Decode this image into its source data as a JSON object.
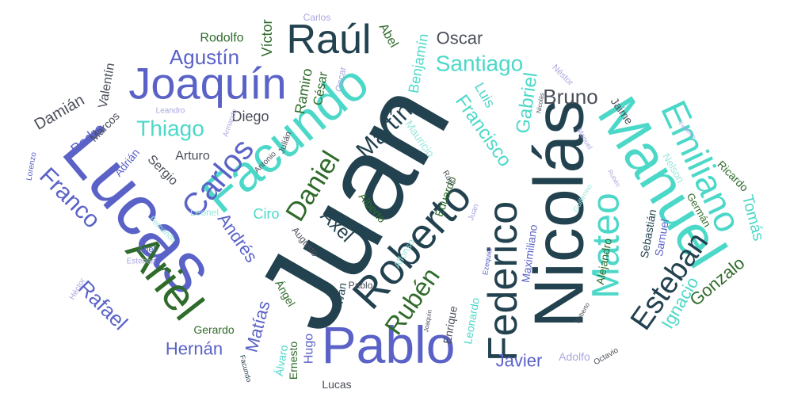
{
  "colors": {
    "navy": "#23424f",
    "blue": "#5a62c7",
    "teal": "#4cd8c8",
    "green": "#2f6b2a",
    "lavender": "#a9a6e0",
    "mint": "#9ce6dc",
    "gray": "#4a4f5a"
  },
  "words": [
    {
      "text": "Juan",
      "color": "navy"
    },
    {
      "text": "Lucas",
      "color": "blue"
    },
    {
      "text": "Nicolás",
      "color": "navy"
    },
    {
      "text": "Manuel",
      "color": "teal"
    },
    {
      "text": "Facundo",
      "color": "teal"
    },
    {
      "text": "Pablo",
      "color": "blue"
    },
    {
      "text": "Joaquín",
      "color": "blue"
    },
    {
      "text": "Raúl",
      "color": "navy"
    },
    {
      "text": "Ariel",
      "color": "green"
    },
    {
      "text": "Federico",
      "color": "navy"
    },
    {
      "text": "Roberto",
      "color": "navy"
    },
    {
      "text": "Emiliano",
      "color": "teal"
    },
    {
      "text": "Mateo",
      "color": "teal"
    },
    {
      "text": "Esteban",
      "color": "navy"
    },
    {
      "text": "Carlos",
      "color": "blue"
    },
    {
      "text": "Daniel",
      "color": "green"
    },
    {
      "text": "Martín",
      "color": "navy"
    },
    {
      "text": "Santiago",
      "color": "teal"
    },
    {
      "text": "Agustín",
      "color": "blue"
    },
    {
      "text": "Thiago",
      "color": "teal"
    },
    {
      "text": "Franco",
      "color": "blue"
    },
    {
      "text": "Rafael",
      "color": "blue"
    },
    {
      "text": "Rubén",
      "color": "green"
    },
    {
      "text": "Bruno",
      "color": "gray"
    },
    {
      "text": "Oscar",
      "color": "gray"
    },
    {
      "text": "Francisco",
      "color": "teal"
    },
    {
      "text": "Gabriel",
      "color": "teal"
    },
    {
      "text": "Axel",
      "color": "navy"
    },
    {
      "text": "Andrés",
      "color": "blue"
    },
    {
      "text": "Matías",
      "color": "blue"
    },
    {
      "text": "Hernán",
      "color": "blue"
    },
    {
      "text": "Ignacio",
      "color": "teal"
    },
    {
      "text": "Gonzalo",
      "color": "green"
    },
    {
      "text": "Tomás",
      "color": "teal"
    },
    {
      "text": "Javier",
      "color": "blue"
    },
    {
      "text": "Damián",
      "color": "gray"
    },
    {
      "text": "Pedro",
      "color": "blue"
    },
    {
      "text": "Diego",
      "color": "gray"
    },
    {
      "text": "Arturo",
      "color": "gray"
    },
    {
      "text": "Sergio",
      "color": "gray"
    },
    {
      "text": "Víctor",
      "color": "green"
    },
    {
      "text": "Rodolfo",
      "color": "green"
    },
    {
      "text": "Benjamín",
      "color": "teal"
    },
    {
      "text": "Abel",
      "color": "green"
    },
    {
      "text": "Ramiro",
      "color": "green"
    },
    {
      "text": "César",
      "color": "green"
    },
    {
      "text": "Luis",
      "color": "teal"
    },
    {
      "text": "Valentín",
      "color": "gray"
    },
    {
      "text": "Marcos",
      "color": "gray"
    },
    {
      "text": "Adrián",
      "color": "blue"
    },
    {
      "text": "Ciro",
      "color": "teal"
    },
    {
      "text": "Leonel",
      "color": "mint"
    },
    {
      "text": "Alberto",
      "color": "green"
    },
    {
      "text": "Eduardo",
      "color": "green"
    },
    {
      "text": "Mauricio",
      "color": "mint"
    },
    {
      "text": "Alejandro",
      "color": "green"
    },
    {
      "text": "Ricardo",
      "color": "green"
    },
    {
      "text": "Sebastián",
      "color": "navy"
    },
    {
      "text": "Samuel",
      "color": "blue"
    },
    {
      "text": "Nelson",
      "color": "mint"
    },
    {
      "text": "Germán",
      "color": "green"
    },
    {
      "text": "Jaime",
      "color": "gray"
    },
    {
      "text": "Maximiliano",
      "color": "blue"
    },
    {
      "text": "Leonardo",
      "color": "teal"
    },
    {
      "text": "Enrique",
      "color": "gray"
    },
    {
      "text": "Hugo",
      "color": "blue"
    },
    {
      "text": "Ernesto",
      "color": "green"
    },
    {
      "text": "Álvaro",
      "color": "teal"
    },
    {
      "text": "Gerardo",
      "color": "green"
    },
    {
      "text": "Iván",
      "color": "navy"
    },
    {
      "text": "Ángel",
      "color": "green"
    },
    {
      "text": "Augusto",
      "color": "gray"
    },
    {
      "text": "Alfonso",
      "color": "mint"
    },
    {
      "text": "Adolfo",
      "color": "lavender"
    },
    {
      "text": "Octavio",
      "color": "gray"
    },
    {
      "text": "Lucas",
      "color": "gray"
    },
    {
      "text": "Pablo",
      "color": "gray"
    },
    {
      "text": "Carlos",
      "color": "lavender"
    },
    {
      "text": "Oscar",
      "color": "lavender"
    },
    {
      "text": "Néstor",
      "color": "lavender"
    },
    {
      "text": "Leandro",
      "color": "lavender"
    },
    {
      "text": "Armando",
      "color": "lavender"
    },
    {
      "text": "Antonio",
      "color": "gray"
    },
    {
      "text": "Julián",
      "color": "gray"
    },
    {
      "text": "Lorenzo",
      "color": "blue"
    },
    {
      "text": "Fernando",
      "color": "mint"
    },
    {
      "text": "Ariel",
      "color": "blue"
    },
    {
      "text": "Esteban",
      "color": "lavender"
    },
    {
      "text": "Héctor",
      "color": "lavender"
    },
    {
      "text": "Raúl",
      "color": "gray"
    },
    {
      "text": "Juan",
      "color": "lavender"
    },
    {
      "text": "Ezequiel",
      "color": "blue"
    },
    {
      "text": "Joaquín",
      "color": "gray"
    },
    {
      "text": "Roberto",
      "color": "gray"
    },
    {
      "text": "Nicolás",
      "color": "gray"
    },
    {
      "text": "Manuel",
      "color": "lavender"
    },
    {
      "text": "Rubén",
      "color": "lavender"
    },
    {
      "text": "Federico",
      "color": "lavender"
    },
    {
      "text": "Guillermo",
      "color": "mint"
    },
    {
      "text": "Facundo",
      "color": "navy"
    }
  ]
}
